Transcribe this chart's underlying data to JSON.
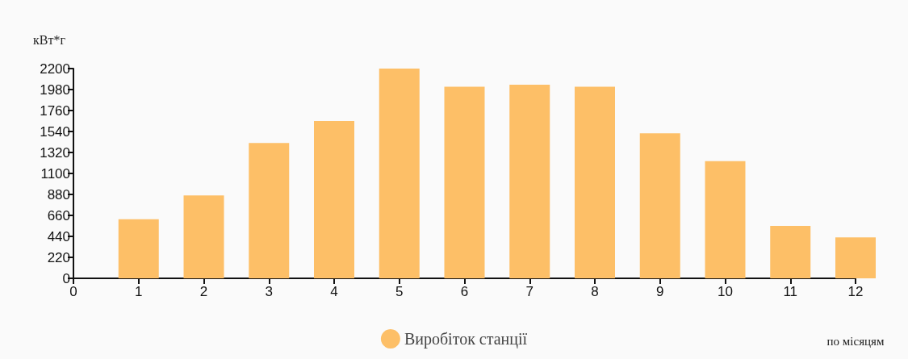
{
  "chart_data": {
    "type": "bar",
    "ylabel": "кВт*г",
    "xlabel": "по місяцям",
    "x": [
      1,
      2,
      3,
      4,
      5,
      6,
      7,
      8,
      9,
      10,
      11,
      12
    ],
    "series": [
      {
        "name": "Виробіток станції",
        "color": "#fdbf67",
        "values": [
          620,
          870,
          1420,
          1650,
          2200,
          2010,
          2030,
          2010,
          1520,
          1230,
          550,
          430
        ]
      }
    ],
    "xlim": [
      0,
      12
    ],
    "xticks": [
      0,
      1,
      2,
      3,
      4,
      5,
      6,
      7,
      8,
      9,
      10,
      11,
      12
    ],
    "ylim": [
      0,
      2200
    ],
    "yticks": [
      0,
      220,
      440,
      660,
      880,
      1100,
      1320,
      1540,
      1760,
      1980,
      2200
    ],
    "grid": false,
    "legend": "bottom",
    "marker": "circle"
  }
}
